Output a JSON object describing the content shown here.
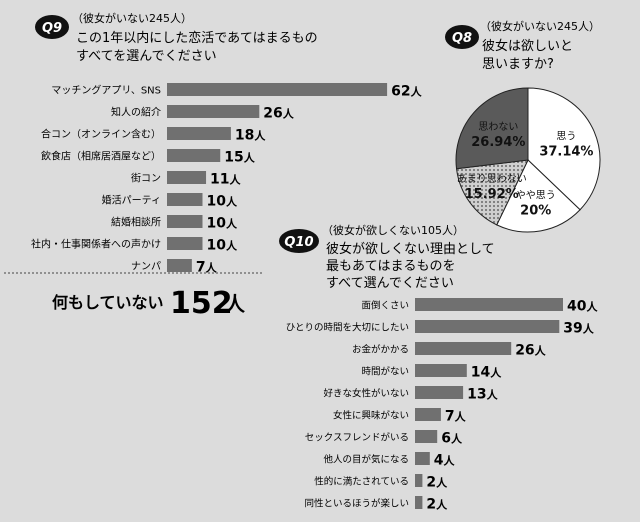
{
  "q9": {
    "badge": "Q9",
    "note": "（彼女がいない245人）",
    "title_line1": "この1年以内にした恋活であてはまるもの",
    "title_line2": "すべてを選んでください"
  },
  "q8": {
    "badge": "Q8",
    "note": "（彼女がいない245人）",
    "title_line1": "彼女は欲しいと",
    "title_line2": "思いますか?"
  },
  "q10": {
    "badge": "Q10",
    "note": "（彼女が欲しくない105人）",
    "title_line1": "彼女が欲しくない理由として",
    "title_line2": "最もあてはまるものを",
    "title_line3": "すべて選んでください"
  },
  "nothing": {
    "label": "何もしていない",
    "value": "152",
    "unit": "人"
  },
  "unit": "人",
  "colors": {
    "bar": "#707070",
    "background": "#dcdcdc",
    "pie_dark": "#5a5a5a",
    "pie_dot": "#a8a8a8",
    "pie_light": "#ffffff"
  },
  "chart_data": [
    {
      "id": "q9",
      "type": "bar",
      "orientation": "horizontal",
      "categories": [
        "マッチングアプリ、SNS",
        "知人の紹介",
        "合コン（オンライン含む）",
        "飲食店（相席居酒屋など）",
        "街コン",
        "婚活パーティ",
        "結婚相談所",
        "社内・仕事関係者への声かけ",
        "ナンパ"
      ],
      "values": [
        62,
        26,
        18,
        15,
        11,
        10,
        10,
        10,
        7
      ],
      "value_suffix": "人"
    },
    {
      "id": "q8",
      "type": "pie",
      "labels": [
        "思う",
        "やや思う",
        "あまり思わない",
        "思わない"
      ],
      "values": [
        37.14,
        20,
        15.92,
        26.94
      ],
      "value_labels": [
        "37.14%",
        "20%",
        "15.92%",
        "26.94%"
      ]
    },
    {
      "id": "q10",
      "type": "bar",
      "orientation": "horizontal",
      "categories": [
        "面倒くさい",
        "ひとりの時間を大切にしたい",
        "お金がかかる",
        "時間がない",
        "好きな女性がいない",
        "女性に興味がない",
        "セックスフレンドがいる",
        "他人の目が気になる",
        "性的に満たされている",
        "同性といるほうが楽しい"
      ],
      "values": [
        40,
        39,
        26,
        14,
        13,
        7,
        6,
        4,
        2,
        2
      ],
      "value_suffix": "人"
    }
  ]
}
